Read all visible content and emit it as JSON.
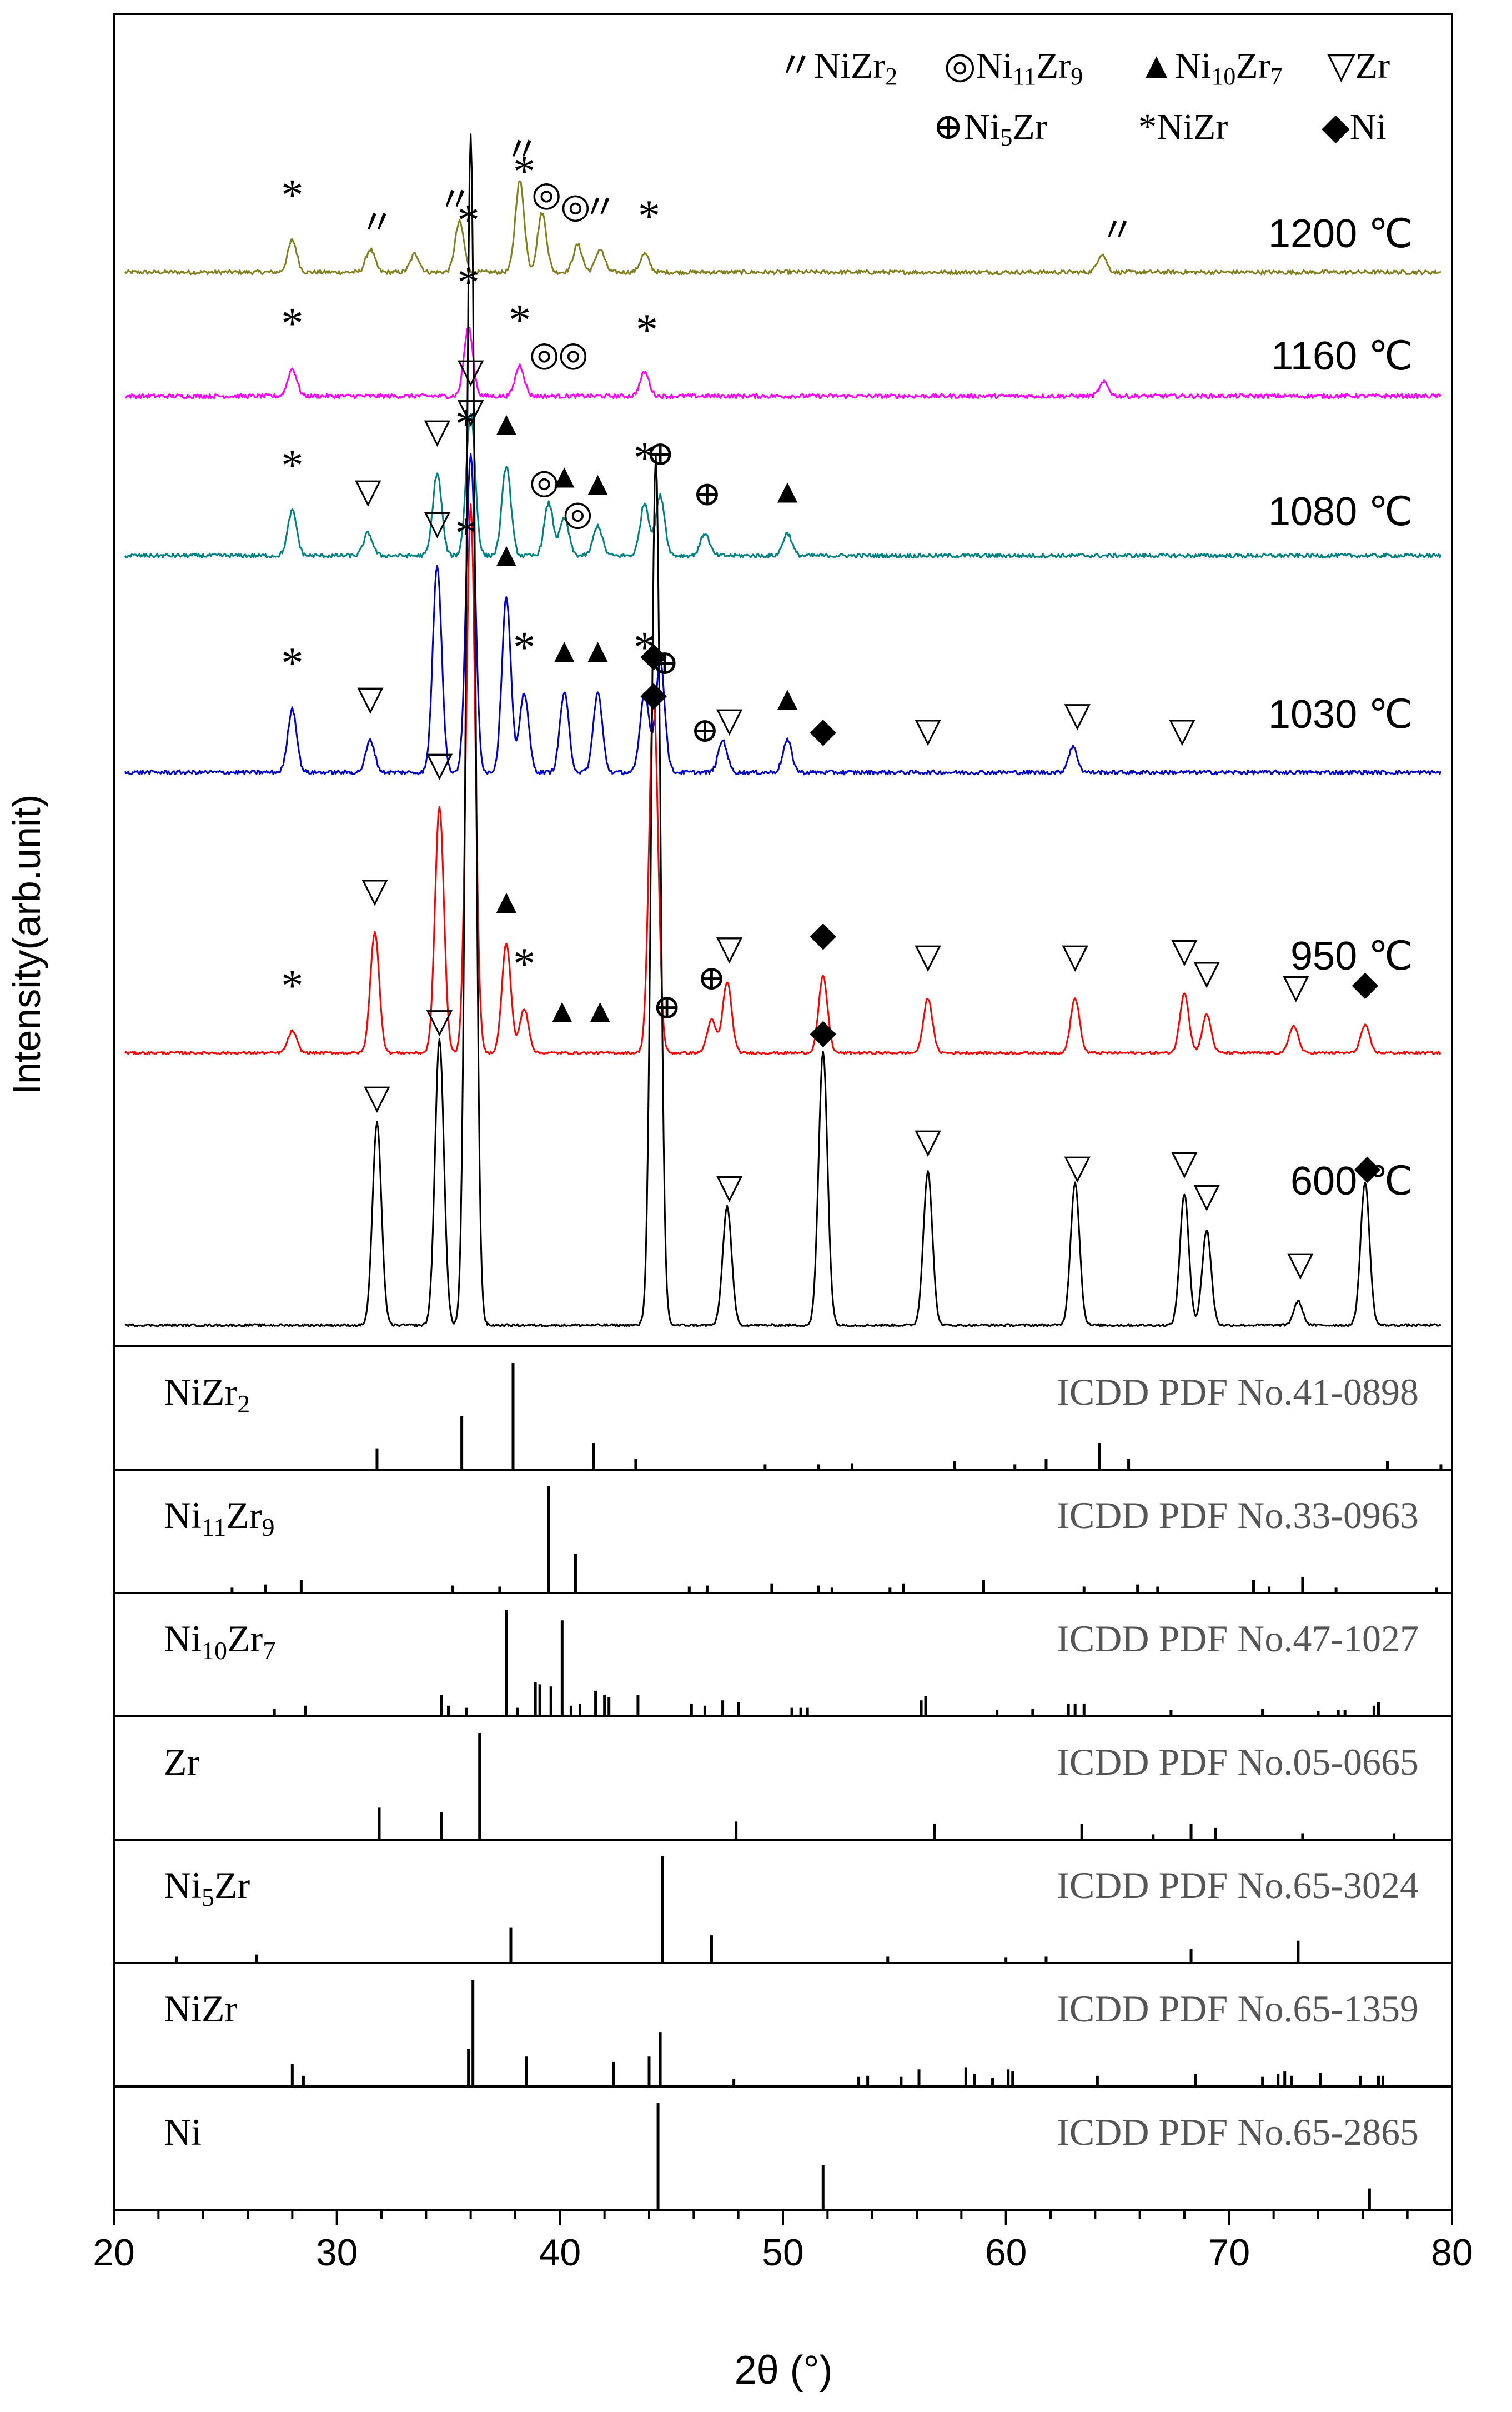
{
  "chart_data": {
    "type": "line",
    "xlabel": "2θ (°)",
    "ylabel": "Intensity(arb.unit)",
    "xlim": [
      20,
      80
    ],
    "xticks": [
      "20",
      "30",
      "40",
      "50",
      "60",
      "70",
      "80"
    ],
    "colors": {
      "1200": "#808020",
      "1160": "#ff00ff",
      "1080": "#008080",
      "1030": "#0000cc",
      "950": "#ff0000",
      "600": "#000000",
      "reference": "#000000"
    },
    "legend": {
      "row1": [
        {
          "symbol": "〃",
          "phase": "NiZr",
          "sub": "2"
        },
        {
          "symbol": "◎",
          "phase": "Ni",
          "sub": "11",
          "phase2": "Zr",
          "sub2": "9"
        },
        {
          "symbol": "▲",
          "phase": "Ni",
          "sub": "10",
          "phase2": "Zr",
          "sub2": "7"
        },
        {
          "symbol": "▽",
          "phase": "Zr"
        }
      ],
      "row2": [
        {
          "symbol": "⊕",
          "phase": "Ni",
          "sub": "5",
          "phase2": "Zr"
        },
        {
          "symbol": "*",
          "phase": "NiZr"
        },
        {
          "symbol": "◆",
          "phase": "Ni"
        }
      ]
    },
    "series": [
      {
        "name": "1200 ℃",
        "color": "#808020",
        "amp": 0.35,
        "peaks": [
          [
            28,
            0.35
          ],
          [
            31.5,
            0.25
          ],
          [
            33.5,
            0.2
          ],
          [
            35.5,
            0.55
          ],
          [
            38.2,
            1.0
          ],
          [
            39.2,
            0.65
          ],
          [
            40.8,
            0.3
          ],
          [
            41.8,
            0.25
          ],
          [
            43.8,
            0.2
          ],
          [
            64.3,
            0.2
          ]
        ],
        "markers": [
          [
            28,
            "*"
          ],
          [
            31.8,
            "〃"
          ],
          [
            35.3,
            "〃"
          ],
          [
            35.9,
            "*"
          ],
          [
            38.4,
            "*"
          ],
          [
            38.3,
            "〃"
          ],
          [
            39.4,
            "◎"
          ],
          [
            40.7,
            "◎"
          ],
          [
            41.8,
            "〃"
          ],
          [
            44,
            "*"
          ],
          [
            65,
            "〃"
          ]
        ]
      },
      {
        "name": "1160 ℃",
        "color": "#ff00ff",
        "amp": 0.22,
        "peaks": [
          [
            28,
            0.4
          ],
          [
            35.9,
            1.0
          ],
          [
            38.2,
            0.45
          ],
          [
            43.8,
            0.35
          ],
          [
            64.4,
            0.2
          ]
        ],
        "markers": [
          [
            28,
            "*"
          ],
          [
            35.9,
            "*"
          ],
          [
            38.2,
            "*"
          ],
          [
            39.3,
            "◎"
          ],
          [
            40.6,
            "◎"
          ],
          [
            43.9,
            "*"
          ]
        ]
      },
      {
        "name": "1080 ℃",
        "color": "#008080",
        "amp": 0.3,
        "peaks": [
          [
            28,
            0.3
          ],
          [
            31.4,
            0.15
          ],
          [
            34.5,
            0.55
          ],
          [
            36,
            0.95
          ],
          [
            37.6,
            0.6
          ],
          [
            39.5,
            0.35
          ],
          [
            40.2,
            0.25
          ],
          [
            41.7,
            0.2
          ],
          [
            43.8,
            0.35
          ],
          [
            44.5,
            0.4
          ],
          [
            46.5,
            0.15
          ],
          [
            50.2,
            0.15
          ]
        ],
        "markers": [
          [
            28,
            "*"
          ],
          [
            31.4,
            "▽"
          ],
          [
            34.5,
            "▽"
          ],
          [
            36.0,
            "▽"
          ],
          [
            35.8,
            "*"
          ],
          [
            37.6,
            "▲"
          ],
          [
            39.3,
            "◎"
          ],
          [
            40.2,
            "▲"
          ],
          [
            40.8,
            "◎"
          ],
          [
            41.7,
            "▲"
          ],
          [
            43.8,
            "*"
          ],
          [
            44.5,
            "⊕"
          ],
          [
            46.6,
            "⊕"
          ],
          [
            50.2,
            "▲"
          ]
        ]
      },
      {
        "name": "1030 ℃",
        "color": "#0000cc",
        "amp": 0.5,
        "peaks": [
          [
            28,
            0.2
          ],
          [
            31.5,
            0.1
          ],
          [
            34.5,
            0.65
          ],
          [
            36,
            1.0
          ],
          [
            37.6,
            0.55
          ],
          [
            38.4,
            0.25
          ],
          [
            40.2,
            0.25
          ],
          [
            41.7,
            0.25
          ],
          [
            43.8,
            0.25
          ],
          [
            44.5,
            0.35
          ],
          [
            47.3,
            0.1
          ],
          [
            50.2,
            0.1
          ],
          [
            63,
            0.08
          ]
        ],
        "markers": [
          [
            28,
            "*"
          ],
          [
            31.5,
            "▽"
          ],
          [
            34.5,
            "▽"
          ],
          [
            35.8,
            "*"
          ],
          [
            36.0,
            "▽"
          ],
          [
            37.6,
            "▲"
          ],
          [
            38.4,
            "*"
          ],
          [
            40.2,
            "▲"
          ],
          [
            41.7,
            "▲"
          ],
          [
            43.8,
            "*"
          ],
          [
            44.2,
            "◆"
          ],
          [
            44.7,
            "⊕"
          ],
          [
            46.5,
            "⊕"
          ],
          [
            47.6,
            "▽"
          ],
          [
            50.2,
            "▲"
          ],
          [
            51.8,
            "◆"
          ],
          [
            56.5,
            "▽"
          ],
          [
            63.2,
            "▽"
          ],
          [
            67.9,
            "▽"
          ]
        ]
      },
      {
        "name": "950 ℃",
        "color": "#ff0000",
        "amp": 0.62,
        "peaks": [
          [
            28,
            0.04
          ],
          [
            31.7,
            0.22
          ],
          [
            34.6,
            0.45
          ],
          [
            36,
            1.0
          ],
          [
            37.6,
            0.2
          ],
          [
            38.4,
            0.08
          ],
          [
            44.2,
            0.65
          ],
          [
            46.8,
            0.06
          ],
          [
            47.5,
            0.13
          ],
          [
            51.8,
            0.14
          ],
          [
            56.5,
            0.1
          ],
          [
            63.1,
            0.1
          ],
          [
            68,
            0.11
          ],
          [
            69,
            0.07
          ],
          [
            72.9,
            0.05
          ],
          [
            76.1,
            0.05
          ]
        ],
        "markers": [
          [
            28,
            "*"
          ],
          [
            31.7,
            "▽"
          ],
          [
            34.6,
            "▽"
          ],
          [
            37.6,
            "▲"
          ],
          [
            38.4,
            "*"
          ],
          [
            40.1,
            "▲"
          ],
          [
            41.8,
            "▲"
          ],
          [
            44.2,
            "◆"
          ],
          [
            44.8,
            "⊕"
          ],
          [
            46.8,
            "⊕"
          ],
          [
            47.6,
            "▽"
          ],
          [
            51.8,
            "◆"
          ],
          [
            56.5,
            "▽"
          ],
          [
            63.1,
            "▽"
          ],
          [
            68,
            "▽"
          ],
          [
            69,
            "▽"
          ],
          [
            73,
            "▽"
          ],
          [
            76.1,
            "◆"
          ]
        ]
      },
      {
        "name": "600 ℃",
        "color": "#000000",
        "amp": 0.9,
        "peaks": [
          [
            31.8,
            0.17
          ],
          [
            34.6,
            0.24
          ],
          [
            36,
            1.0
          ],
          [
            44.3,
            0.73
          ],
          [
            47.5,
            0.1
          ],
          [
            51.8,
            0.23
          ],
          [
            56.5,
            0.13
          ],
          [
            63.1,
            0.12
          ],
          [
            68,
            0.11
          ],
          [
            69,
            0.08
          ],
          [
            73.1,
            0.02
          ],
          [
            76.1,
            0.12
          ]
        ],
        "markers": [
          [
            31.8,
            "▽"
          ],
          [
            34.6,
            "▽"
          ],
          [
            47.6,
            "▽"
          ],
          [
            51.8,
            "◆"
          ],
          [
            56.5,
            "▽"
          ],
          [
            63.2,
            "▽"
          ],
          [
            68,
            "▽"
          ],
          [
            69,
            "▽"
          ],
          [
            73.2,
            "▽"
          ],
          [
            76.2,
            "◆"
          ]
        ]
      }
    ],
    "references": [
      {
        "phase": "NiZr",
        "sub": "2",
        "phase2": "",
        "sub2": "",
        "card": "ICDD PDF No.41-0898",
        "lines": [
          [
            31.8,
            0.2
          ],
          [
            35.6,
            0.5
          ],
          [
            37.9,
            1.0
          ],
          [
            41.5,
            0.25
          ],
          [
            43.4,
            0.1
          ],
          [
            49.2,
            0.05
          ],
          [
            51.6,
            0.05
          ],
          [
            53.1,
            0.06
          ],
          [
            57.7,
            0.08
          ],
          [
            60.4,
            0.05
          ],
          [
            61.8,
            0.1
          ],
          [
            64.2,
            0.25
          ],
          [
            65.5,
            0.1
          ],
          [
            77.1,
            0.08
          ],
          [
            79.5,
            0.05
          ]
        ]
      },
      {
        "phase": "Ni",
        "sub": "11",
        "phase2": "Zr",
        "sub2": "9",
        "card": "ICDD PDF No.33-0963",
        "lines": [
          [
            25.3,
            0.05
          ],
          [
            26.8,
            0.08
          ],
          [
            28.4,
            0.12
          ],
          [
            35.2,
            0.07
          ],
          [
            37.3,
            0.06
          ],
          [
            39.5,
            1.0
          ],
          [
            40.7,
            0.37
          ],
          [
            45.8,
            0.06
          ],
          [
            46.6,
            0.07
          ],
          [
            49.5,
            0.09
          ],
          [
            51.6,
            0.07
          ],
          [
            52.2,
            0.05
          ],
          [
            54.8,
            0.05
          ],
          [
            55.4,
            0.09
          ],
          [
            59,
            0.12
          ],
          [
            63.5,
            0.06
          ],
          [
            65.9,
            0.08
          ],
          [
            66.8,
            0.06
          ],
          [
            71.1,
            0.12
          ],
          [
            71.8,
            0.06
          ],
          [
            73.3,
            0.15
          ],
          [
            74.8,
            0.05
          ],
          [
            79.3,
            0.05
          ]
        ]
      },
      {
        "phase": "Ni",
        "sub": "10",
        "phase2": "Zr",
        "sub2": "7",
        "card": "ICDD PDF No.47-1027",
        "lines": [
          [
            27.2,
            0.07
          ],
          [
            28.6,
            0.1
          ],
          [
            34.7,
            0.2
          ],
          [
            35.0,
            0.1
          ],
          [
            35.8,
            0.08
          ],
          [
            37.6,
            1.0
          ],
          [
            38.1,
            0.08
          ],
          [
            38.9,
            0.32
          ],
          [
            39.1,
            0.3
          ],
          [
            39.6,
            0.28
          ],
          [
            40.1,
            0.9
          ],
          [
            40.5,
            0.1
          ],
          [
            40.9,
            0.12
          ],
          [
            41.6,
            0.24
          ],
          [
            42.0,
            0.2
          ],
          [
            42.2,
            0.18
          ],
          [
            43.5,
            0.2
          ],
          [
            45.9,
            0.12
          ],
          [
            46.5,
            0.1
          ],
          [
            47.3,
            0.15
          ],
          [
            48.0,
            0.13
          ],
          [
            50.4,
            0.08
          ],
          [
            50.8,
            0.08
          ],
          [
            51.1,
            0.08
          ],
          [
            56.2,
            0.15
          ],
          [
            56.4,
            0.19
          ],
          [
            59.6,
            0.06
          ],
          [
            61.2,
            0.07
          ],
          [
            62.8,
            0.12
          ],
          [
            63.1,
            0.12
          ],
          [
            63.5,
            0.12
          ],
          [
            67.4,
            0.06
          ],
          [
            71.5,
            0.07
          ],
          [
            74.0,
            0.05
          ],
          [
            74.9,
            0.06
          ],
          [
            75.2,
            0.06
          ],
          [
            76.5,
            0.1
          ],
          [
            76.7,
            0.13
          ]
        ]
      },
      {
        "phase": "Zr",
        "sub": "",
        "phase2": "",
        "sub2": "",
        "card": "ICDD PDF No.05-0665",
        "lines": [
          [
            31.9,
            0.3
          ],
          [
            34.7,
            0.26
          ],
          [
            36.4,
            1.0
          ],
          [
            47.9,
            0.17
          ],
          [
            56.8,
            0.15
          ],
          [
            63.4,
            0.15
          ],
          [
            66.6,
            0.05
          ],
          [
            68.3,
            0.15
          ],
          [
            69.4,
            0.11
          ],
          [
            73.3,
            0.06
          ],
          [
            77.4,
            0.06
          ]
        ]
      },
      {
        "phase": "Ni",
        "sub": "5",
        "phase2": "Zr",
        "sub2": "",
        "card": "ICDD PDF No.65-3024",
        "lines": [
          [
            22.8,
            0.06
          ],
          [
            26.4,
            0.08
          ],
          [
            37.8,
            0.33
          ],
          [
            44.6,
            1.0
          ],
          [
            46.8,
            0.26
          ],
          [
            54.7,
            0.06
          ],
          [
            60.0,
            0.05
          ],
          [
            61.8,
            0.06
          ],
          [
            68.3,
            0.13
          ],
          [
            73.1,
            0.21
          ]
        ]
      },
      {
        "phase": "NiZr",
        "sub": "",
        "phase2": "",
        "sub2": "",
        "card": "ICDD PDF No.65-1359",
        "lines": [
          [
            28.0,
            0.21
          ],
          [
            28.5,
            0.1
          ],
          [
            35.9,
            0.35
          ],
          [
            36.1,
            1.0
          ],
          [
            38.5,
            0.28
          ],
          [
            42.4,
            0.23
          ],
          [
            44.0,
            0.28
          ],
          [
            44.5,
            0.51
          ],
          [
            47.8,
            0.07
          ],
          [
            53.4,
            0.09
          ],
          [
            53.8,
            0.1
          ],
          [
            55.3,
            0.09
          ],
          [
            56.1,
            0.16
          ],
          [
            58.2,
            0.18
          ],
          [
            58.6,
            0.12
          ],
          [
            59.4,
            0.08
          ],
          [
            60.1,
            0.16
          ],
          [
            60.3,
            0.14
          ],
          [
            64.1,
            0.1
          ],
          [
            68.5,
            0.12
          ],
          [
            71.5,
            0.09
          ],
          [
            72.2,
            0.12
          ],
          [
            72.5,
            0.14
          ],
          [
            72.8,
            0.1
          ],
          [
            74.1,
            0.13
          ],
          [
            75.9,
            0.1
          ],
          [
            76.7,
            0.1
          ],
          [
            76.9,
            0.1
          ]
        ]
      },
      {
        "phase": "Ni",
        "sub": "",
        "phase2": "",
        "sub2": "",
        "card": "ICDD PDF No.65-2865",
        "lines": [
          [
            44.4,
            1.0
          ],
          [
            51.8,
            0.42
          ],
          [
            76.3,
            0.2
          ]
        ]
      }
    ]
  }
}
